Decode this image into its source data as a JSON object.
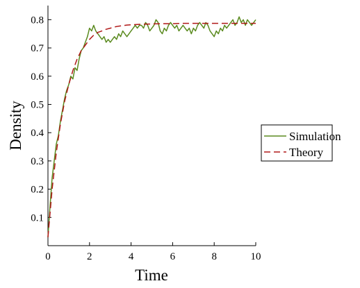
{
  "chart_data": {
    "type": "line",
    "title": "",
    "xlabel": "Time",
    "ylabel": "Density",
    "xlim": [
      0,
      10
    ],
    "ylim": [
      0,
      0.85
    ],
    "xticks": [
      0,
      2,
      4,
      6,
      8,
      10
    ],
    "xtick_labels": [
      "0",
      "2",
      "4",
      "6",
      "8",
      "10"
    ],
    "yticks": [
      0.1,
      0.2,
      0.3,
      0.4,
      0.5,
      0.6,
      0.7,
      0.8
    ],
    "ytick_labels": [
      "0.1",
      "0.2",
      "0.3",
      "0.4",
      "0.5",
      "0.6",
      "0.7",
      "0.8"
    ],
    "grid": false,
    "legend_position": "right",
    "series": [
      {
        "name": "Simulation",
        "color": "#5a8a1e",
        "style": "solid",
        "x": [
          0,
          0.1,
          0.2,
          0.3,
          0.4,
          0.5,
          0.6,
          0.7,
          0.8,
          0.9,
          1.0,
          1.1,
          1.2,
          1.3,
          1.4,
          1.5,
          1.6,
          1.7,
          1.8,
          1.9,
          2.0,
          2.1,
          2.2,
          2.3,
          2.4,
          2.5,
          2.6,
          2.7,
          2.8,
          2.9,
          3.0,
          3.1,
          3.2,
          3.3,
          3.4,
          3.5,
          3.6,
          3.7,
          3.8,
          3.9,
          4.0,
          4.1,
          4.2,
          4.3,
          4.4,
          4.5,
          4.6,
          4.7,
          4.8,
          4.9,
          5.0,
          5.1,
          5.2,
          5.3,
          5.4,
          5.5,
          5.6,
          5.7,
          5.8,
          5.9,
          6.0,
          6.1,
          6.2,
          6.3,
          6.4,
          6.5,
          6.6,
          6.7,
          6.8,
          6.9,
          7.0,
          7.1,
          7.2,
          7.3,
          7.4,
          7.5,
          7.6,
          7.7,
          7.8,
          7.9,
          8.0,
          8.1,
          8.2,
          8.3,
          8.4,
          8.5,
          8.6,
          8.7,
          8.8,
          8.9,
          9.0,
          9.1,
          9.2,
          9.3,
          9.4,
          9.5,
          9.6,
          9.7,
          9.8,
          9.9,
          10.0
        ],
        "y": [
          0.03,
          0.14,
          0.24,
          0.3,
          0.36,
          0.39,
          0.44,
          0.48,
          0.52,
          0.55,
          0.57,
          0.6,
          0.59,
          0.63,
          0.62,
          0.66,
          0.69,
          0.7,
          0.72,
          0.74,
          0.77,
          0.76,
          0.78,
          0.76,
          0.75,
          0.74,
          0.73,
          0.74,
          0.72,
          0.73,
          0.72,
          0.73,
          0.74,
          0.73,
          0.75,
          0.74,
          0.76,
          0.75,
          0.74,
          0.75,
          0.76,
          0.77,
          0.78,
          0.77,
          0.78,
          0.78,
          0.77,
          0.79,
          0.78,
          0.76,
          0.77,
          0.78,
          0.8,
          0.79,
          0.76,
          0.75,
          0.77,
          0.76,
          0.78,
          0.79,
          0.78,
          0.77,
          0.78,
          0.76,
          0.77,
          0.78,
          0.77,
          0.76,
          0.77,
          0.75,
          0.77,
          0.76,
          0.78,
          0.79,
          0.78,
          0.77,
          0.79,
          0.78,
          0.76,
          0.75,
          0.74,
          0.76,
          0.75,
          0.77,
          0.76,
          0.78,
          0.77,
          0.78,
          0.79,
          0.8,
          0.78,
          0.79,
          0.81,
          0.79,
          0.8,
          0.78,
          0.8,
          0.79,
          0.78,
          0.79,
          0.8
        ]
      },
      {
        "name": "Theory",
        "color": "#b01818",
        "style": "dashed",
        "x": [
          0,
          0.2,
          0.4,
          0.6,
          0.8,
          1.0,
          1.2,
          1.4,
          1.6,
          1.8,
          2.0,
          2.2,
          2.4,
          2.6,
          2.8,
          3.0,
          3.2,
          3.4,
          3.6,
          3.8,
          4.0,
          4.5,
          5.0,
          5.5,
          6.0,
          6.5,
          7.0,
          7.5,
          8.0,
          8.5,
          9.0,
          9.5,
          10.0
        ],
        "y": [
          0.03,
          0.2,
          0.33,
          0.43,
          0.51,
          0.57,
          0.62,
          0.66,
          0.69,
          0.71,
          0.73,
          0.745,
          0.755,
          0.76,
          0.766,
          0.77,
          0.774,
          0.777,
          0.779,
          0.781,
          0.782,
          0.784,
          0.785,
          0.786,
          0.786,
          0.787,
          0.787,
          0.787,
          0.787,
          0.787,
          0.787,
          0.787,
          0.787
        ]
      }
    ]
  }
}
